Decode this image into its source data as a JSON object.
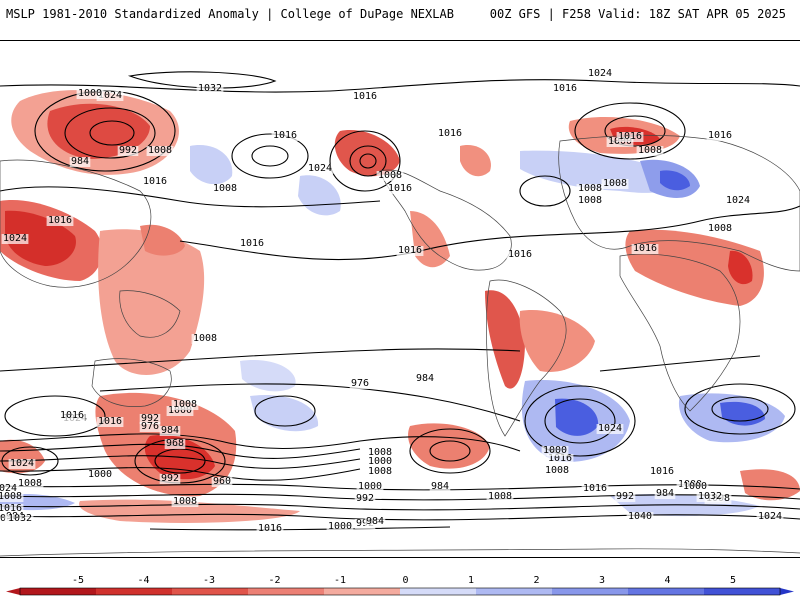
{
  "header": {
    "left": "MSLP 1981-2010 Standardized Anomaly | College of DuPage NEXLAB",
    "right": "00Z GFS | F258 Valid: 18Z SAT APR 05 2025"
  },
  "contour_labels": [
    "1032",
    "1024",
    "1016",
    "1024",
    "1016",
    "1000",
    "984",
    "992",
    "1008",
    "1016",
    "1016",
    "1016",
    "1024",
    "1008",
    "1016",
    "1016",
    "1008",
    "1008",
    "1008",
    "1008",
    "1016",
    "1016",
    "1016",
    "1008",
    "1008",
    "1016",
    "1024",
    "1016",
    "1024",
    "1000",
    "1008",
    "1016",
    "1016",
    "1024",
    "992",
    "1000",
    "976",
    "984",
    "968",
    "1008",
    "992",
    "960",
    "1008",
    "1000",
    "1008",
    "1000",
    "992",
    "984",
    "984",
    "976",
    "1016",
    "1024",
    "1016",
    "1008",
    "1000",
    "992",
    "984",
    "1000",
    "1008",
    "1016",
    "1000",
    "1032",
    "1024",
    "1040",
    "1008",
    "1000",
    "992",
    "984",
    "1008",
    "1016",
    "1024",
    "1016",
    "1000",
    "1008",
    "1024",
    "1008",
    "1016",
    "1000",
    "984",
    "1032"
  ],
  "colorbar": {
    "ticks": [
      "-5",
      "-4",
      "-3",
      "-2",
      "-1",
      "0",
      "1",
      "2",
      "3",
      "4",
      "5"
    ],
    "colors": [
      "#b2171c",
      "#cc2a2a",
      "#dc4b45",
      "#e8736a",
      "#f2a59b",
      "#fad1ca",
      "#ffffff",
      "#ffffff",
      "#ccd3f7",
      "#a5b1f0",
      "#7d8ee9",
      "#566ae0",
      "#3a4bd6",
      "#2332c9"
    ],
    "neg_colors": [
      "#b2171c",
      "#d0312d",
      "#e0544a",
      "#ec8075",
      "#f4ab9f",
      "#fbd5cd"
    ],
    "pos_colors": [
      "#d5dbf8",
      "#aeb9f2",
      "#8897ea",
      "#6475e2",
      "#4152d6",
      "#2536c8"
    ]
  },
  "anomaly_colors": {
    "neg_strong": "#d9312c",
    "neg_mid": "#ec8070",
    "neg_weak": "#f8c2b6",
    "pos_weak": "#cfd6f7",
    "pos_mid": "#9aa8ef",
    "pos_strong": "#4a5ee0"
  }
}
